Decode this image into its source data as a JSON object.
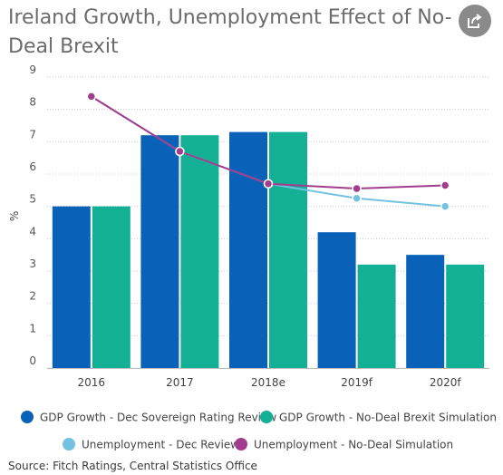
{
  "title": "Ireland Growth, Unemployment Effect of No-Deal Brexit",
  "share_icon": "share-icon",
  "chart_data": {
    "type": "bar",
    "categories": [
      "2016",
      "2017",
      "2018e",
      "2019f",
      "2020f"
    ],
    "ylabel": "%",
    "ylim": [
      0,
      9
    ],
    "yticks": [
      "0",
      "1",
      "2",
      "3",
      "4",
      "5",
      "6",
      "7",
      "8",
      "9"
    ],
    "grid": true,
    "legend_placement": "bottom",
    "series": [
      {
        "name": "GDP Growth - Dec Sovereign Rating Review",
        "type": "bar",
        "color": "#0a62b8",
        "values": [
          5.0,
          7.2,
          7.3,
          4.2,
          3.5
        ]
      },
      {
        "name": "GDP Growth - No-Deal Brexit Simulation",
        "type": "bar",
        "color": "#13b096",
        "values": [
          5.0,
          7.2,
          7.3,
          3.2,
          3.2
        ]
      },
      {
        "name": "Unemployment - Dec Review",
        "type": "line",
        "color": "#74c2e1",
        "values": [
          8.4,
          6.7,
          5.7,
          5.25,
          5.0
        ]
      },
      {
        "name": "Unemployment - No-Deal Simulation",
        "type": "line",
        "color": "#a23d8e",
        "values": [
          8.4,
          6.7,
          5.7,
          5.55,
          5.65
        ]
      }
    ]
  },
  "source": "Source: Fitch Ratings, Central Statistics Office"
}
